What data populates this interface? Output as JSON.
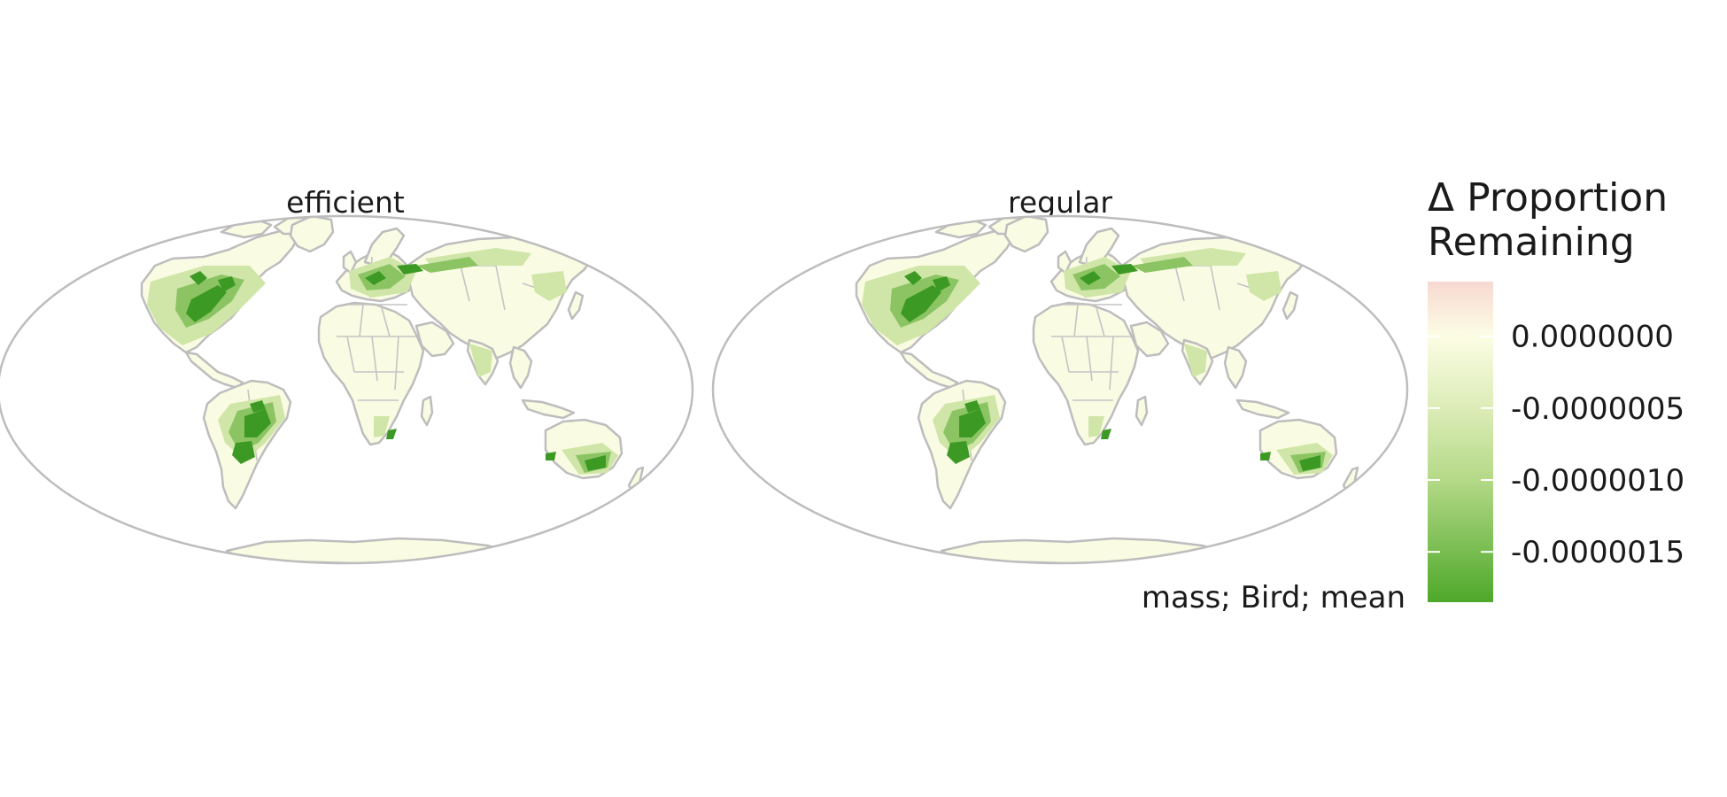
{
  "panels": [
    {
      "title": "efficient"
    },
    {
      "title": "regular"
    }
  ],
  "caption": "mass; Bird; mean",
  "legend": {
    "title_line1": "Δ Proportion",
    "title_line2": "Remaining",
    "ticks": [
      {
        "value": 0.0,
        "label": "0.0000000"
      },
      {
        "value": -5e-07,
        "label": "-0.0000005"
      },
      {
        "value": -1e-06,
        "label": "-0.0000010"
      },
      {
        "value": -1.5e-06,
        "label": "-0.0000015"
      }
    ],
    "range": [
      -1.85e-06,
      3.8e-07
    ],
    "gradient": [
      {
        "value": 3.8e-07,
        "color": "#f7d9d2"
      },
      {
        "value": 0.0,
        "color": "#fcfde4"
      },
      {
        "value": -5e-07,
        "color": "#dcecb7"
      },
      {
        "value": -1e-06,
        "color": "#b4d987"
      },
      {
        "value": -1.85e-06,
        "color": "#4ea82a"
      }
    ]
  },
  "colors": {
    "land_neutral": "#fafbe3",
    "outline": "#bdbdbd",
    "loss_strong": "#3c9a24",
    "loss_medium": "#8cc464",
    "loss_light": "#cfe6a8"
  }
}
